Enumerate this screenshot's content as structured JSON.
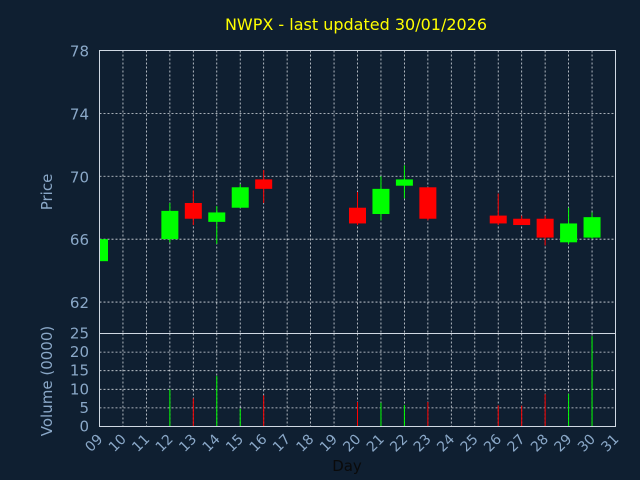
{
  "chart_data": {
    "type": "candlestick",
    "title": "NWPX - last updated 30/01/2026",
    "price_axis": {
      "label": "Price",
      "range": [
        60,
        78
      ],
      "ticks": [
        62,
        66,
        70,
        74,
        78
      ]
    },
    "volume_axis": {
      "label": "Volume (0000)",
      "range": [
        0,
        25
      ],
      "ticks": [
        0,
        5,
        10,
        15,
        20,
        25
      ]
    },
    "x_axis": {
      "label": "Day",
      "ticks": [
        "09",
        "10",
        "11",
        "12",
        "13",
        "14",
        "15",
        "16",
        "17",
        "18",
        "19",
        "20",
        "21",
        "22",
        "23",
        "24",
        "25",
        "26",
        "27",
        "28",
        "29",
        "30",
        "31"
      ]
    },
    "up_color": "#00ff00",
    "down_color": "#ff0000",
    "candles": [
      {
        "day": 9,
        "open": 64.6,
        "high": 66.0,
        "low": 64.6,
        "close": 66.0,
        "volume": 0
      },
      {
        "day": 12,
        "open": 66.0,
        "high": 68.3,
        "low": 65.8,
        "close": 67.8,
        "volume": 10.0
      },
      {
        "day": 13,
        "open": 68.3,
        "high": 69.1,
        "low": 66.9,
        "close": 67.3,
        "volume": 7.6
      },
      {
        "day": 14,
        "open": 67.1,
        "high": 68.1,
        "low": 65.7,
        "close": 67.7,
        "volume": 13.6
      },
      {
        "day": 15,
        "open": 68.0,
        "high": 69.5,
        "low": 68.0,
        "close": 69.3,
        "volume": 4.8
      },
      {
        "day": 16,
        "open": 69.8,
        "high": 70.4,
        "low": 68.3,
        "close": 69.2,
        "volume": 8.4
      },
      {
        "day": 20,
        "open": 68.0,
        "high": 69.0,
        "low": 66.9,
        "close": 67.0,
        "volume": 6.6
      },
      {
        "day": 21,
        "open": 67.6,
        "high": 70.0,
        "low": 67.2,
        "close": 69.2,
        "volume": 6.4
      },
      {
        "day": 22,
        "open": 69.4,
        "high": 70.7,
        "low": 68.6,
        "close": 69.8,
        "volume": 5.8
      },
      {
        "day": 23,
        "open": 69.3,
        "high": 69.3,
        "low": 67.2,
        "close": 67.3,
        "volume": 6.6
      },
      {
        "day": 26,
        "open": 67.5,
        "high": 68.9,
        "low": 66.9,
        "close": 67.0,
        "volume": 5.7
      },
      {
        "day": 27,
        "open": 67.3,
        "high": 67.5,
        "low": 66.9,
        "close": 66.9,
        "volume": 5.6
      },
      {
        "day": 28,
        "open": 67.3,
        "high": 67.5,
        "low": 65.6,
        "close": 66.1,
        "volume": 8.7
      },
      {
        "day": 29,
        "open": 65.8,
        "high": 68.0,
        "low": 65.7,
        "close": 67.0,
        "volume": 8.8
      },
      {
        "day": 30,
        "open": 66.1,
        "high": 67.7,
        "low": 66.0,
        "close": 67.4,
        "volume": 24.3
      }
    ]
  }
}
